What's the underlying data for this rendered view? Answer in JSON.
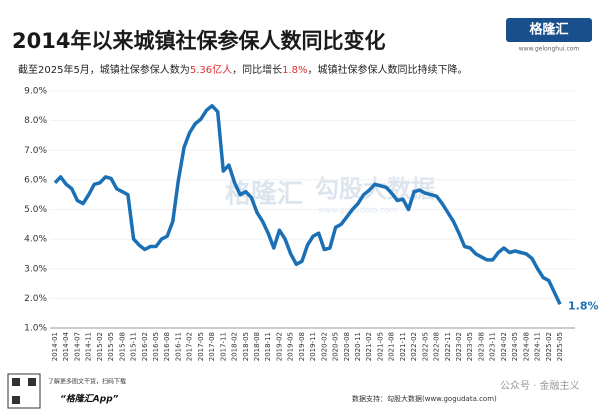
{
  "chart_data": {
    "type": "line",
    "title": "2014年以来城镇社保参保人数同比变化",
    "subtitle_parts": [
      "截至2025年5月，城镇社保参保人数为",
      "5.36亿人",
      "，同比增长",
      "1.8%",
      "，城镇社保参保人数同比持续下降。"
    ],
    "highlight_color": "#e03030",
    "categories": [
      "2014-01",
      null,
      "2014-04",
      null,
      "2014-07",
      null,
      "2014-11",
      null,
      "2015-02",
      null,
      "2015-05",
      null,
      "2015-08",
      null,
      "2015-11",
      null,
      "2016-02",
      null,
      "2016-05",
      null,
      "2016-08",
      null,
      "2016-11",
      null,
      "2017-02",
      null,
      "2017-05",
      null,
      "2017-08",
      null,
      "2017-11",
      null,
      "2018-02",
      null,
      "2018-05",
      null,
      "2018-08",
      null,
      "2018-11",
      null,
      "2019-02",
      null,
      "2019-05",
      null,
      "2019-08",
      null,
      "2019-11",
      null,
      "2020-02",
      null,
      "2020-05",
      null,
      "2020-08",
      null,
      "2020-11",
      null,
      "2021-02",
      null,
      "2021-05",
      null,
      "2021-08",
      null,
      "2021-11",
      null,
      "2022-02",
      null,
      "2022-05",
      null,
      "2022-08",
      null,
      "2022-11",
      null,
      "2023-02",
      null,
      "2023-05",
      null,
      "2023-08",
      null,
      "2023-11",
      null,
      "2024-02",
      null,
      "2024-05",
      null,
      "2024-08",
      null,
      "2024-11",
      null,
      "2025-02",
      null,
      "2025-05"
    ],
    "series": [
      {
        "color": "#1a6fb5",
        "values": [
          5.9,
          6.1,
          5.85,
          5.7,
          5.3,
          5.2,
          5.5,
          5.85,
          5.9,
          6.1,
          6.05,
          5.7,
          5.6,
          5.5,
          4.0,
          3.8,
          3.65,
          3.75,
          3.75,
          4.0,
          4.1,
          4.6,
          6.0,
          7.1,
          7.6,
          7.9,
          8.05,
          8.35,
          8.5,
          8.3,
          6.3,
          6.5,
          5.9,
          5.5,
          5.6,
          5.4,
          4.9,
          4.6,
          4.2,
          3.7,
          4.3,
          4.0,
          3.5,
          3.15,
          3.25,
          3.8,
          4.1,
          4.2,
          3.65,
          3.7,
          4.4,
          4.5,
          4.75,
          5.0,
          5.2,
          5.5,
          5.65,
          5.85,
          5.8,
          5.75,
          5.55,
          5.3,
          5.35,
          5.0,
          5.6,
          5.65,
          5.55,
          5.5,
          5.45,
          5.2,
          4.9,
          4.6,
          4.2,
          3.75,
          3.7,
          3.5,
          3.4,
          3.3,
          3.3,
          3.55,
          3.7,
          3.55,
          3.6,
          3.55,
          3.5,
          3.35,
          3.0,
          2.7,
          2.6,
          2.2,
          1.8
        ]
      }
    ],
    "end_label": "1.8%",
    "ylim": [
      1,
      9
    ],
    "yticks": [
      {
        "value": 1,
        "label": "1.0%"
      },
      {
        "value": 2,
        "label": "2.0%"
      },
      {
        "value": 3,
        "label": "3.0%"
      },
      {
        "value": 4,
        "label": "4.0%"
      },
      {
        "value": 5,
        "label": "5.0%"
      },
      {
        "value": 6,
        "label": "6.0%"
      },
      {
        "value": 7,
        "label": "7.0%"
      },
      {
        "value": 8,
        "label": "8.0%"
      },
      {
        "value": 9,
        "label": "9.0%"
      }
    ],
    "grid": true
  },
  "logo": {
    "name": "格隆汇",
    "url": "www.gelonghui.com"
  },
  "watermark": [
    "格隆汇",
    "勾股大数据",
    "www.gogudata.com"
  ],
  "footer": {
    "qr_text": "了解更多图文干货，扫码下载",
    "app": "“格隆汇App”",
    "source": "数据支持：勾股大数据(www.gogudata.com)",
    "account": "公众号 · 金融主义"
  }
}
